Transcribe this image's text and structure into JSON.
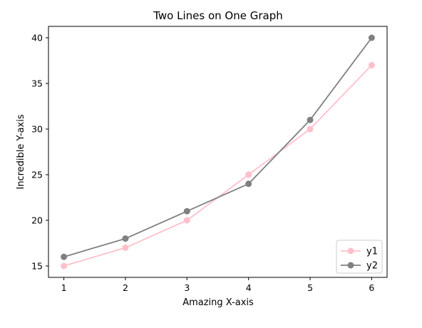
{
  "chart_data": {
    "type": "line",
    "title": "Two Lines on One Graph",
    "xlabel": "Amazing X-axis",
    "ylabel": "Incredible Y-axis",
    "x": [
      1,
      2,
      3,
      4,
      5,
      6
    ],
    "xticks": [
      1,
      2,
      3,
      4,
      5,
      6
    ],
    "yticks": [
      15,
      20,
      25,
      30,
      35,
      40
    ],
    "xlim": [
      0.75,
      6.25
    ],
    "ylim": [
      13.75,
      41.25
    ],
    "grid": false,
    "legend_position": "lower-right",
    "series": [
      {
        "name": "y1",
        "values": [
          15,
          17,
          20,
          25,
          30,
          37
        ],
        "color": "#ffc0cb",
        "marker": "circle"
      },
      {
        "name": "y2",
        "values": [
          16,
          18,
          21,
          24,
          31,
          40
        ],
        "color": "#808080",
        "marker": "circle"
      }
    ]
  }
}
